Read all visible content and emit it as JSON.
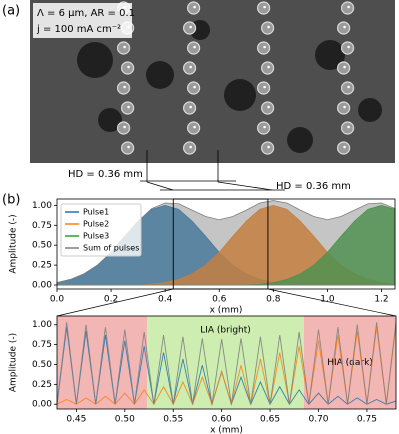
{
  "panel_a": {
    "label": "(a)",
    "annotation_lines": [
      "Λ = 6 μm, AR = 0.1",
      "j = 100 mA cm⁻²"
    ]
  },
  "hd_annotations": [
    "HD = 0.36 mm",
    "HD = 0.36 mm"
  ],
  "panel_b": {
    "label": "(b)"
  },
  "chart_data": [
    {
      "type": "area",
      "xlabel": "x (mm)",
      "ylabel": "Amplitude (-)",
      "x": [
        0,
        0.05,
        0.1,
        0.15,
        0.2,
        0.25,
        0.3,
        0.35,
        0.4,
        0.45,
        0.5,
        0.55,
        0.6,
        0.65,
        0.7,
        0.75,
        0.8,
        0.85,
        0.9,
        0.95,
        1.0,
        1.05,
        1.1,
        1.15,
        1.2,
        1.25
      ],
      "series": [
        {
          "name": "Pulse1",
          "color": "#1f77b4",
          "values": [
            0.03,
            0.07,
            0.14,
            0.25,
            0.41,
            0.61,
            0.8,
            0.95,
            1,
            0.95,
            0.8,
            0.61,
            0.41,
            0.25,
            0.14,
            0.07,
            0.03,
            0.01,
            0,
            0,
            0,
            0,
            0,
            0,
            0,
            0
          ]
        },
        {
          "name": "Pulse2",
          "color": "#ff7f0e",
          "values": [
            0,
            0,
            0,
            0,
            0,
            0,
            0,
            0.01,
            0.03,
            0.07,
            0.14,
            0.25,
            0.41,
            0.61,
            0.8,
            0.95,
            1,
            0.95,
            0.8,
            0.61,
            0.41,
            0.25,
            0.14,
            0.07,
            0.03,
            0.01
          ]
        },
        {
          "name": "Pulse3",
          "color": "#2ca02c",
          "values": [
            0,
            0,
            0,
            0,
            0,
            0,
            0,
            0,
            0,
            0,
            0,
            0,
            0,
            0,
            0,
            0.01,
            0.03,
            0.07,
            0.14,
            0.25,
            0.41,
            0.61,
            0.8,
            0.95,
            1,
            0.95
          ]
        },
        {
          "name": "Sum of pulses",
          "color": "#7f7f7f",
          "values": [
            0.03,
            0.07,
            0.14,
            0.25,
            0.41,
            0.61,
            0.8,
            0.96,
            1.03,
            1.02,
            0.94,
            0.86,
            0.82,
            0.86,
            0.94,
            1.03,
            1.06,
            1.03,
            0.94,
            0.86,
            0.82,
            0.86,
            0.94,
            1.02,
            1.03,
            0.96
          ]
        }
      ],
      "xlim": [
        0,
        1.25
      ],
      "ylim": [
        -0.05,
        1.08
      ],
      "xticks": [
        {
          "value": 0,
          "label": "0.0"
        },
        0.2,
        0.4,
        0.6,
        0.8,
        {
          "value": 1,
          "label": "1.0"
        },
        1.2
      ],
      "yticks": [
        {
          "value": 0,
          "label": "0.00"
        },
        0.25,
        {
          "value": 0.5,
          "label": "0.50"
        },
        0.75,
        {
          "value": 1,
          "label": "1.00"
        }
      ],
      "legend": "upper left",
      "zoom_range": [
        0.43,
        0.78
      ]
    },
    {
      "type": "line",
      "xlabel": "x (mm)",
      "ylabel": "Amplitude (-)",
      "x": [
        0.43,
        0.44,
        0.45,
        0.46,
        0.47,
        0.48,
        0.49,
        0.5,
        0.51,
        0.52,
        0.53,
        0.54,
        0.55,
        0.56,
        0.57,
        0.58,
        0.59,
        0.6,
        0.61,
        0.62,
        0.63,
        0.64,
        0.65,
        0.66,
        0.67,
        0.68,
        0.69,
        0.7,
        0.71,
        0.72,
        0.73,
        0.74,
        0.75,
        0.76,
        0.77,
        0.78
      ],
      "series": [
        {
          "name": "Pulse1",
          "color": "#1f77b4",
          "values": [
            0,
            0.97,
            0,
            0.92,
            0,
            0.87,
            0,
            0.8,
            0,
            0.73,
            0,
            0.65,
            0,
            0.57,
            0,
            0.49,
            0,
            0.41,
            0,
            0.34,
            0,
            0.28,
            0,
            0.22,
            0,
            0.18,
            0,
            0.14,
            0,
            0.1,
            0,
            0.08,
            0,
            0.06,
            0,
            0.04
          ]
        },
        {
          "name": "Pulse2",
          "color": "#ff7f0e",
          "values": [
            0,
            0.06,
            0,
            0.08,
            0,
            0.1,
            0,
            0.14,
            0,
            0.18,
            0,
            0.22,
            0,
            0.28,
            0,
            0.34,
            0,
            0.41,
            0,
            0.49,
            0,
            0.57,
            0,
            0.65,
            0,
            0.73,
            0,
            0.8,
            0,
            0.87,
            0,
            0.92,
            0,
            0.97,
            0,
            0.99
          ]
        },
        {
          "name": "Sum of pulses",
          "color": "#7f7f7f",
          "values": [
            0,
            1.03,
            0,
            1,
            0,
            0.97,
            0,
            0.94,
            0,
            0.91,
            0,
            0.87,
            0,
            0.85,
            0,
            0.83,
            0,
            0.82,
            0,
            0.83,
            0,
            0.85,
            0,
            0.87,
            0,
            0.91,
            0,
            0.94,
            0,
            0.97,
            0,
            1,
            0,
            1.03,
            0,
            1.03
          ]
        }
      ],
      "spans": [
        {
          "start": 0.43,
          "end": 0.523,
          "color": "#f2b6b4"
        },
        {
          "start": 0.523,
          "end": 0.685,
          "color": "#cdeeb0",
          "label": "LIA (bright)"
        },
        {
          "start": 0.685,
          "end": 0.78,
          "color": "#f2b6b4",
          "label": "HIA (dark)"
        }
      ],
      "xlim": [
        0.43,
        0.78
      ],
      "ylim": [
        -0.06,
        1.11
      ],
      "xticks": [
        0.45,
        {
          "value": 0.5,
          "label": "0.50"
        },
        0.55,
        {
          "value": 0.6,
          "label": "0.60"
        },
        0.65,
        {
          "value": 0.7,
          "label": "0.70"
        },
        0.75
      ],
      "yticks": [
        {
          "value": 0,
          "label": "0.00"
        },
        0.25,
        {
          "value": 0.5,
          "label": "0.50"
        },
        0.75,
        {
          "value": 1,
          "label": "1.00"
        }
      ]
    }
  ]
}
